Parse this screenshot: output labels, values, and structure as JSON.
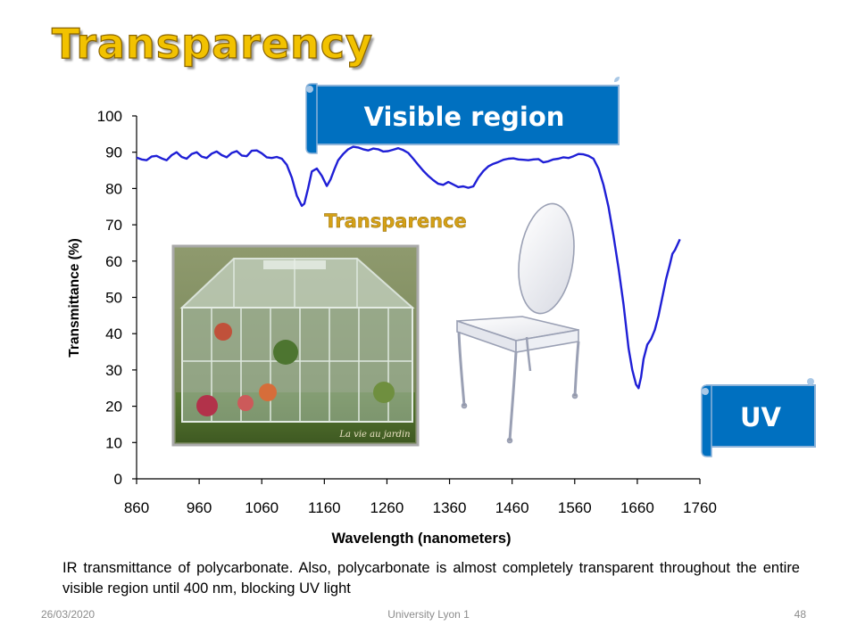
{
  "slide": {
    "title": "Transparency",
    "caption": "IR transmittance of polycarbonate. Also, polycarbonate is almost completely transparent throughout the entire visible region until 400 nm, blocking UV light",
    "footer_date": "26/03/2020",
    "footer_org": "University Lyon 1",
    "footer_page": "48"
  },
  "banners": {
    "visible": "Visible region",
    "uv": "UV",
    "transparence": "Transparence",
    "banner_color": "#0070c0",
    "transparence_color": "#d4a017"
  },
  "images": {
    "greenhouse_watermark": "La vie au jardin"
  },
  "chart_data": {
    "type": "line",
    "title": "",
    "xlabel": "Wavelength (nanometers)",
    "ylabel": "Transmittance (%)",
    "xlim": [
      860,
      1760
    ],
    "ylim": [
      0,
      100
    ],
    "xticks": [
      860,
      960,
      1060,
      1160,
      1260,
      1360,
      1460,
      1560,
      1660,
      1760
    ],
    "yticks": [
      0,
      10,
      20,
      30,
      40,
      50,
      60,
      70,
      80,
      90,
      100
    ],
    "grid": false,
    "line_color": "#1f1fd6",
    "series": [
      {
        "x": [
          860,
          868,
          876,
          884,
          892,
          900,
          908,
          916,
          924,
          932,
          940,
          948,
          956,
          964,
          972,
          980,
          988,
          996,
          1004,
          1012,
          1020,
          1028,
          1036,
          1044,
          1052,
          1060,
          1068,
          1076,
          1084,
          1092,
          1100,
          1108,
          1116,
          1124,
          1128,
          1134,
          1140,
          1148,
          1156,
          1164,
          1170,
          1176,
          1182,
          1190,
          1198,
          1206,
          1214,
          1222,
          1230,
          1238,
          1246,
          1254,
          1262,
          1270,
          1278,
          1286,
          1294,
          1302,
          1310,
          1318,
          1326,
          1334,
          1342,
          1350,
          1358,
          1366,
          1374,
          1382,
          1390,
          1398,
          1406,
          1414,
          1422,
          1430,
          1438,
          1446,
          1454,
          1462,
          1470,
          1478,
          1486,
          1494,
          1502,
          1510,
          1518,
          1526,
          1534,
          1542,
          1550,
          1558,
          1566,
          1574,
          1582,
          1590,
          1598,
          1606,
          1614,
          1622,
          1630,
          1638,
          1646,
          1652,
          1658,
          1662,
          1666,
          1670,
          1676,
          1682,
          1688,
          1694,
          1700,
          1706,
          1712,
          1716,
          1720,
          1724,
          1728
        ],
        "y": [
          88.5,
          88,
          87.8,
          88.8,
          89,
          88.3,
          87.8,
          89.2,
          90,
          88.7,
          88.2,
          89.5,
          90,
          88.8,
          88.4,
          89.6,
          90.2,
          89.2,
          88.6,
          89.8,
          90.3,
          89.1,
          88.9,
          90.4,
          90.5,
          89.7,
          88.6,
          88.4,
          88.7,
          88.2,
          86.5,
          83,
          78,
          75.2,
          75.8,
          80,
          84.7,
          85.5,
          83.5,
          80.7,
          82.5,
          85.3,
          87.8,
          89.5,
          90.8,
          91.5,
          91.3,
          90.8,
          90.5,
          91,
          90.8,
          90.2,
          90.3,
          90.7,
          91.1,
          90.6,
          89.8,
          88.2,
          86.5,
          84.9,
          83.5,
          82.3,
          81.3,
          81,
          81.8,
          81.1,
          80.4,
          80.6,
          80.2,
          80.6,
          83,
          84.8,
          86.1,
          86.8,
          87.3,
          87.9,
          88.2,
          88.3,
          88,
          87.9,
          87.8,
          88,
          88.1,
          87.2,
          87.5,
          88,
          88.2,
          88.6,
          88.4,
          88.9,
          89.5,
          89.4,
          89,
          88.2,
          85.5,
          81,
          75,
          67,
          58,
          48,
          36,
          30,
          26,
          25,
          28,
          33,
          37,
          38.5,
          41,
          45,
          50,
          55,
          59,
          62,
          63,
          64.5,
          66
        ]
      }
    ]
  }
}
